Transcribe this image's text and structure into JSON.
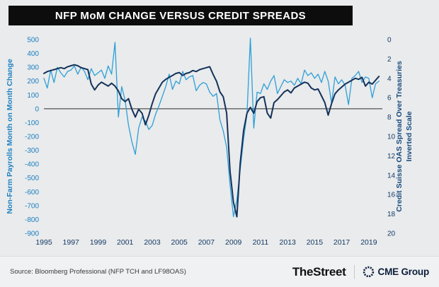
{
  "title_bar": {
    "title": "NFP MoM CHANGE VERSUS CREDIT SPREADS"
  },
  "colors": {
    "page_background": "#e9ebec",
    "title_bar_bg": "#0d0d0d",
    "title_bar_fg": "#ffffff",
    "nfp_series": "#2e9fd8",
    "spread_series": "#15325a",
    "left_axis_text": "#1a7fc1",
    "right_axis_text": "#153a66",
    "zero_line": "#2d2d2d"
  },
  "footer": {
    "source": "Source: Bloomberg Professional (NFP TCH and LF98OAS)",
    "thestreet": "TheStreet",
    "cme_group": "CME Group"
  },
  "chart_data": {
    "type": "line",
    "title": "NFP MoM CHANGE VERSUS CREDIT SPREADS",
    "x_axis": {
      "range": [
        1995,
        2020
      ],
      "ticks": [
        1995,
        1997,
        1999,
        2001,
        2003,
        2005,
        2007,
        2009,
        2011,
        2013,
        2015,
        2017,
        2019
      ]
    },
    "left_axis": {
      "label": "Non-Farm Payrolls Month on Month Change",
      "range": [
        -900,
        500
      ],
      "ticks": [
        500,
        400,
        300,
        200,
        100,
        0,
        -100,
        -200,
        -300,
        -400,
        -500,
        -600,
        -700,
        -800,
        -900
      ]
    },
    "right_axis": {
      "label": "Credit Suisse OAS Spread Over Treasuries Inverted Scale",
      "label_lines": [
        "Credit Suisse OAS Spread Over Treasuries",
        "Inverted Scale"
      ],
      "range": [
        0,
        20
      ],
      "inverted": true,
      "ticks": [
        0,
        2,
        4,
        6,
        8,
        10,
        12,
        14,
        16,
        18,
        20
      ]
    },
    "x_start": 1995.0,
    "x_step": 0.25,
    "series": [
      {
        "name": "Non-Farm Payrolls MoM Change (thousands)",
        "axis": "left",
        "color": "#2e9fd8",
        "values": [
          220,
          150,
          280,
          190,
          300,
          260,
          230,
          270,
          280,
          310,
          250,
          300,
          270,
          210,
          290,
          240,
          260,
          280,
          220,
          310,
          250,
          480,
          -60,
          160,
          60,
          -120,
          -240,
          -330,
          -140,
          -60,
          -90,
          -150,
          -120,
          -40,
          20,
          90,
          160,
          250,
          140,
          200,
          180,
          270,
          210,
          230,
          240,
          130,
          170,
          190,
          180,
          120,
          90,
          110,
          -80,
          -160,
          -280,
          -550,
          -780,
          -660,
          -440,
          -220,
          -40,
          510,
          -140,
          120,
          110,
          180,
          140,
          200,
          240,
          110,
          160,
          210,
          190,
          200,
          170,
          220,
          180,
          280,
          240,
          260,
          220,
          250,
          190,
          270,
          200,
          40,
          230,
          180,
          210,
          170,
          30,
          220,
          240,
          270,
          190,
          230,
          220,
          80,
          180,
          200
        ]
      },
      {
        "name": "Credit Suisse OAS Spread Over Treasuries (%)",
        "axis": "right",
        "color": "#15325a",
        "values": [
          3.5,
          3.3,
          3.2,
          3.1,
          3.0,
          2.9,
          3.0,
          2.8,
          2.7,
          2.6,
          2.7,
          2.9,
          3.0,
          3.1,
          4.6,
          5.2,
          4.7,
          4.4,
          4.6,
          4.8,
          4.5,
          4.8,
          5.3,
          6.1,
          6.4,
          6.1,
          7.2,
          8.0,
          7.2,
          7.6,
          8.8,
          7.8,
          6.6,
          5.6,
          5.0,
          4.4,
          4.1,
          3.9,
          3.7,
          3.5,
          3.4,
          3.7,
          3.5,
          3.4,
          3.2,
          3.3,
          3.1,
          3.0,
          2.9,
          2.8,
          3.6,
          4.3,
          5.4,
          5.9,
          7.6,
          13.6,
          16.8,
          18.3,
          12.8,
          9.4,
          7.6,
          7.0,
          7.6,
          6.4,
          6.0,
          5.9,
          7.6,
          8.1,
          6.5,
          6.2,
          5.8,
          5.4,
          5.2,
          5.5,
          5.0,
          4.8,
          4.6,
          4.4,
          4.5,
          5.0,
          5.2,
          5.1,
          5.8,
          6.5,
          7.8,
          6.6,
          5.6,
          5.2,
          4.9,
          4.6,
          4.4,
          4.2,
          4.0,
          4.1,
          3.9,
          4.8,
          4.4,
          4.6,
          4.2,
          3.8
        ]
      }
    ]
  }
}
